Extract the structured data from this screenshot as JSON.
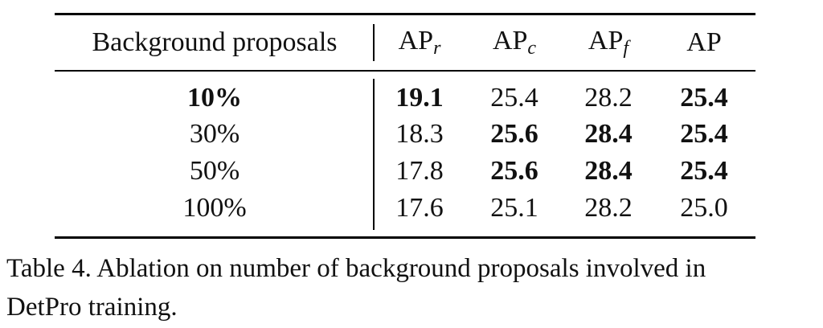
{
  "table": {
    "header": [
      {
        "text": "Background proposals"
      },
      {
        "text": "AP",
        "sub": "r"
      },
      {
        "text": "AP",
        "sub": "c"
      },
      {
        "text": "AP",
        "sub": "f"
      },
      {
        "text": "AP"
      }
    ],
    "rows": [
      [
        "10%",
        "19.1",
        "25.4",
        "28.2",
        "25.4"
      ],
      [
        "30%",
        "18.3",
        "25.6",
        "28.4",
        "25.4"
      ],
      [
        "50%",
        "17.8",
        "25.6",
        "28.4",
        "25.4"
      ],
      [
        "100%",
        "17.6",
        "25.1",
        "28.2",
        "25.0"
      ]
    ],
    "bold": [
      [
        true,
        true,
        false,
        false,
        true
      ],
      [
        false,
        false,
        true,
        true,
        true
      ],
      [
        false,
        false,
        true,
        true,
        true
      ],
      [
        false,
        false,
        false,
        false,
        false
      ]
    ]
  },
  "caption": {
    "lines": [
      "Table 4. Ablation on number of background proposals involved in",
      "DetPro training."
    ]
  }
}
